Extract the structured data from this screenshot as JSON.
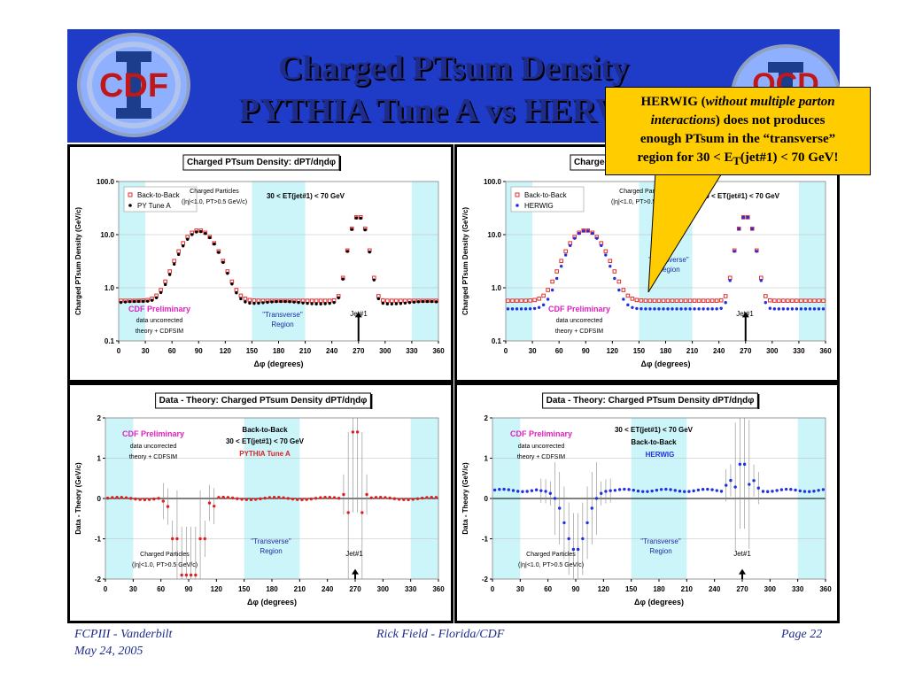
{
  "slide": {
    "title_line1": "Charged PTsum Density",
    "title_line2": "PYTHIA Tune A vs HERWIG",
    "logo_left": "CDF",
    "logo_right": "QCD",
    "footer_left_line1": "FCPIII - Vanderbilt",
    "footer_left_line2": "May 24, 2005",
    "footer_center": "Rick Field - Florida/CDF",
    "footer_right": "Page 22",
    "colors": {
      "header": "#1e3cc8",
      "title": "#1e2c8c",
      "callout": "#ffcc00",
      "transverse_band": "#ccf5fa"
    }
  },
  "callout": {
    "line1_a": "HERWIG (",
    "line1_b": "without multiple parton",
    "line2_a": "interactions",
    "line2_b": ") does not produces",
    "line3": "enough PTsum in the “transverse”",
    "line4_a": "region for 30 < E",
    "line4_sub": "T",
    "line4_b": "(jet#1) < 70 GeV!"
  },
  "chart_data": [
    {
      "type": "scatter",
      "title": "Charged PTsum Density: dPT/dηdφ",
      "xlabel": "Δφ  (degrees)",
      "ylabel": "Charged PTsum Density (GeV/c)",
      "yscale": "log",
      "xlim": [
        0,
        360
      ],
      "ylim": [
        0.1,
        100
      ],
      "x_ticks": [
        "0",
        "30",
        "60",
        "90",
        "120",
        "150",
        "180",
        "210",
        "240",
        "270",
        "300",
        "330",
        "360"
      ],
      "y_ticks": [
        "0.1",
        "1.0",
        "10.0",
        "100.0"
      ],
      "legend": "top-left",
      "shaded_regions_deg": [
        [
          0,
          30
        ],
        [
          150,
          210
        ],
        [
          330,
          360
        ]
      ],
      "annotations": [
        "Charged Particles",
        "(|η|<1.0, PT>0.5 GeV/c)",
        "30 < ET(jet#1) < 70 GeV",
        "CDF Preliminary",
        "data uncorrected",
        "theory + CDFSIM",
        "\"Transverse\"",
        "Region",
        "Jet#1"
      ],
      "series": [
        {
          "name": "Back-to-Back",
          "marker": "open-square",
          "color": "#e03030"
        },
        {
          "name": "PY Tune A",
          "marker": "filled-circle",
          "color": "#000000"
        }
      ]
    },
    {
      "type": "scatter",
      "title": "Charged PTsum Density: dPT/dηdφ",
      "xlabel": "Δφ  (degrees)",
      "ylabel": "Charged PTsum Density (GeV/c)",
      "yscale": "log",
      "xlim": [
        0,
        360
      ],
      "ylim": [
        0.1,
        100
      ],
      "x_ticks": [
        "0",
        "30",
        "60",
        "90",
        "120",
        "150",
        "180",
        "210",
        "240",
        "270",
        "300",
        "330",
        "360"
      ],
      "y_ticks": [
        "0.1",
        "1.0",
        "10.0",
        "100.0"
      ],
      "legend": "top-left",
      "shaded_regions_deg": [
        [
          0,
          30
        ],
        [
          150,
          210
        ],
        [
          330,
          360
        ]
      ],
      "annotations": [
        "Charged Particles",
        "(|η|<1.0, PT>0.5 GeV/c)",
        "30 < ET(jet#1) < 70 GeV",
        "CDF Preliminary",
        "data uncorrected",
        "theory + CDFSIM",
        "\"Transverse\"",
        "Region",
        "Jet#1"
      ],
      "series": [
        {
          "name": "Back-to-Back",
          "marker": "open-square",
          "color": "#e03030"
        },
        {
          "name": "HERWIG",
          "marker": "filled-circle",
          "color": "#2030e0"
        }
      ]
    },
    {
      "type": "scatter",
      "title": "Data - Theory: Charged PTsum Density dPT/dηdφ",
      "xlabel": "Δφ (degrees)",
      "ylabel": "Data - Theory  (GeV/c)",
      "xlim": [
        0,
        360
      ],
      "ylim": [
        -2,
        2
      ],
      "x_ticks": [
        "0",
        "30",
        "60",
        "90",
        "120",
        "150",
        "180",
        "210",
        "240",
        "270",
        "300",
        "330",
        "360"
      ],
      "y_ticks": [
        "-2",
        "-1",
        "0",
        "1",
        "2"
      ],
      "shaded_regions_deg": [
        [
          0,
          30
        ],
        [
          150,
          210
        ],
        [
          330,
          360
        ]
      ],
      "annotations": [
        "CDF Preliminary",
        "data uncorrected",
        "theory + CDFSIM",
        "Back-to-Back",
        "30 < ET(jet#1) < 70 GeV",
        "PYTHIA Tune A",
        "Charged Particles",
        "(|η|<1.0, PT>0.5 GeV/c)",
        "\"Transverse\"",
        "Region",
        "Jet#1"
      ],
      "series": [
        {
          "marker": "filled-circle",
          "color": "#e02020"
        }
      ]
    },
    {
      "type": "scatter",
      "title": "Data - Theory: Charged PTsum Density dPT/dηdφ",
      "xlabel": "Δφ (degrees)",
      "ylabel": "Data - Theory  (GeV/c)",
      "xlim": [
        0,
        360
      ],
      "ylim": [
        -2,
        2
      ],
      "x_ticks": [
        "0",
        "30",
        "60",
        "90",
        "120",
        "150",
        "180",
        "210",
        "240",
        "270",
        "300",
        "330",
        "360"
      ],
      "y_ticks": [
        "-2",
        "-1",
        "0",
        "1",
        "2"
      ],
      "shaded_regions_deg": [
        [
          0,
          30
        ],
        [
          150,
          210
        ],
        [
          330,
          360
        ]
      ],
      "annotations": [
        "CDF Preliminary",
        "data uncorrected",
        "theory + CDFSIM",
        "30 < ET(jet#1) < 70 GeV",
        "Back-to-Back",
        "HERWIG",
        "Charged Particles",
        "(|η|<1.0, PT>0.5 GeV/c)",
        "\"Transverse\"",
        "Region",
        "Jet#1"
      ],
      "series": [
        {
          "marker": "filled-circle",
          "color": "#2030e0"
        }
      ]
    }
  ]
}
